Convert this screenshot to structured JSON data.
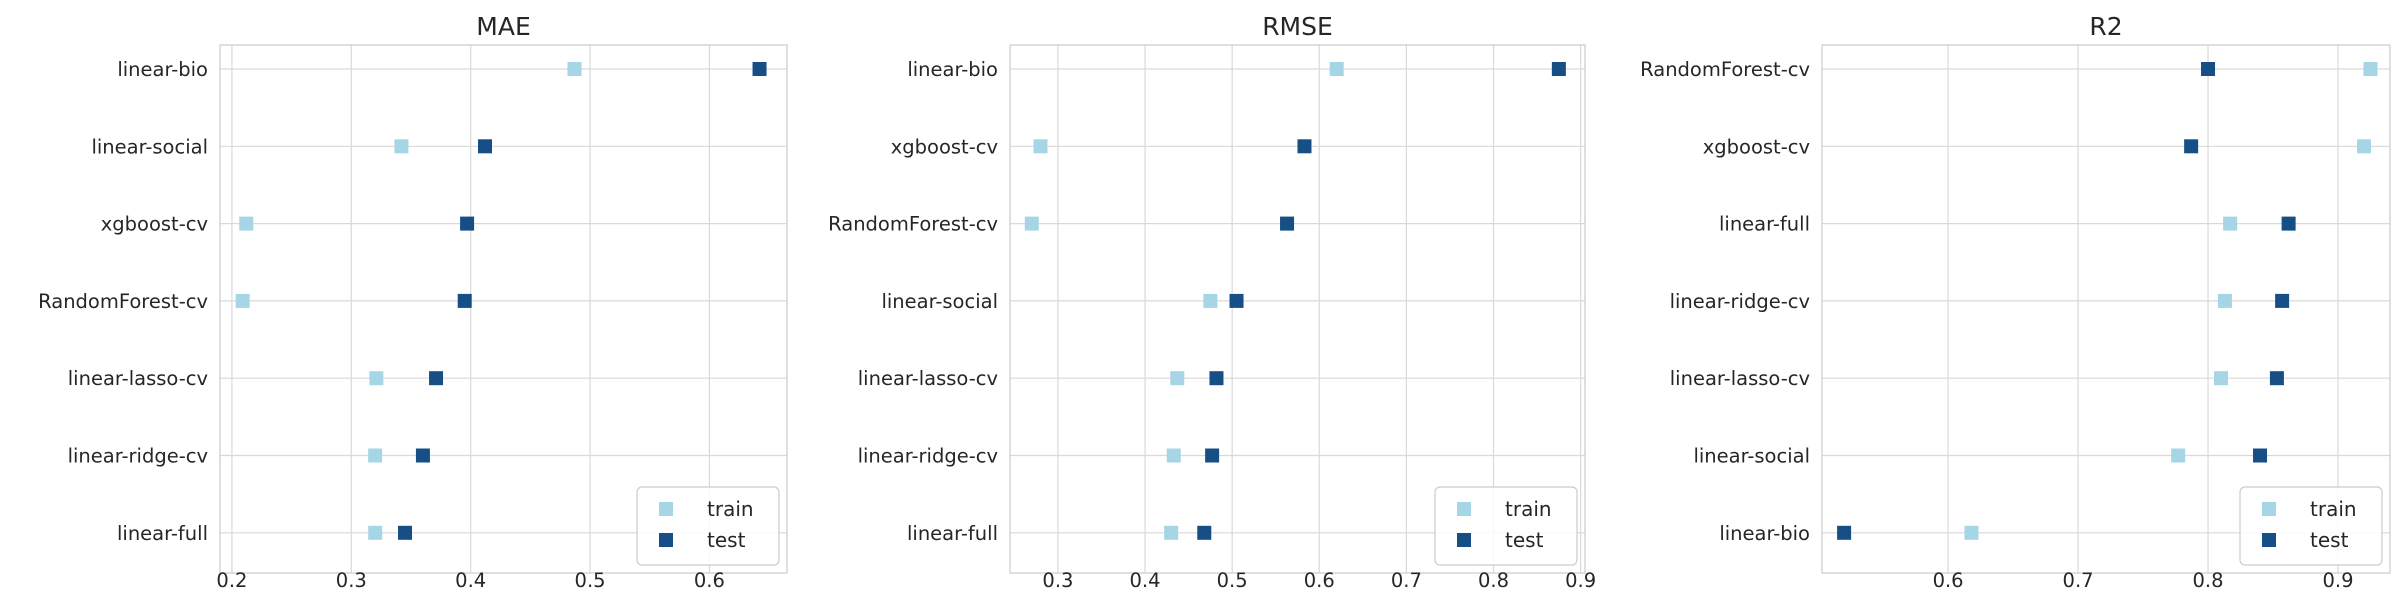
{
  "colors": {
    "train": "#a6d5e6",
    "test": "#154f85",
    "grid": "#d9d9d9",
    "text": "#262626"
  },
  "chart_data": [
    {
      "type": "scatter",
      "title": "MAE",
      "categories": [
        "linear-bio",
        "linear-social",
        "xgboost-cv",
        "RandomForest-cv",
        "linear-lasso-cv",
        "linear-ridge-cv",
        "linear-full"
      ],
      "series": [
        {
          "name": "train",
          "values": [
            0.487,
            0.342,
            0.212,
            0.209,
            0.321,
            0.32,
            0.32
          ]
        },
        {
          "name": "test",
          "values": [
            0.642,
            0.412,
            0.397,
            0.395,
            0.371,
            0.36,
            0.345
          ]
        }
      ],
      "xticks": [
        0.2,
        0.3,
        0.4,
        0.5,
        0.6
      ],
      "xtick_labels": [
        "0.2",
        "0.3",
        "0.4",
        "0.5",
        "0.6"
      ],
      "xlim": [
        0.19,
        0.665
      ],
      "legend_position": "lower-right",
      "grid": true
    },
    {
      "type": "scatter",
      "title": "RMSE",
      "categories": [
        "linear-bio",
        "xgboost-cv",
        "RandomForest-cv",
        "linear-social",
        "linear-lasso-cv",
        "linear-ridge-cv",
        "linear-full"
      ],
      "series": [
        {
          "name": "train",
          "values": [
            0.62,
            0.28,
            0.27,
            0.475,
            0.437,
            0.433,
            0.43
          ]
        },
        {
          "name": "test",
          "values": [
            0.875,
            0.583,
            0.563,
            0.505,
            0.482,
            0.477,
            0.468
          ]
        }
      ],
      "xticks": [
        0.3,
        0.4,
        0.5,
        0.6,
        0.7,
        0.8,
        0.9
      ],
      "xtick_labels": [
        "0.3",
        "0.4",
        "0.5",
        "0.6",
        "0.7",
        "0.8",
        "0.9"
      ],
      "xlim": [
        0.245,
        0.905
      ],
      "legend_position": "lower-right",
      "grid": true
    },
    {
      "type": "scatter",
      "title": "R2",
      "categories": [
        "RandomForest-cv",
        "xgboost-cv",
        "linear-full",
        "linear-ridge-cv",
        "linear-lasso-cv",
        "linear-social",
        "linear-bio"
      ],
      "series": [
        {
          "name": "train",
          "values": [
            0.925,
            0.92,
            0.817,
            0.813,
            0.81,
            0.777,
            0.618
          ]
        },
        {
          "name": "test",
          "values": [
            0.8,
            0.787,
            0.862,
            0.857,
            0.853,
            0.84,
            0.52
          ]
        }
      ],
      "xticks": [
        0.6,
        0.7,
        0.8,
        0.9
      ],
      "xtick_labels": [
        "0.6",
        "0.7",
        "0.8",
        "0.9"
      ],
      "xlim": [
        0.503,
        0.94
      ],
      "legend_position": "lower-right",
      "grid": true
    }
  ]
}
